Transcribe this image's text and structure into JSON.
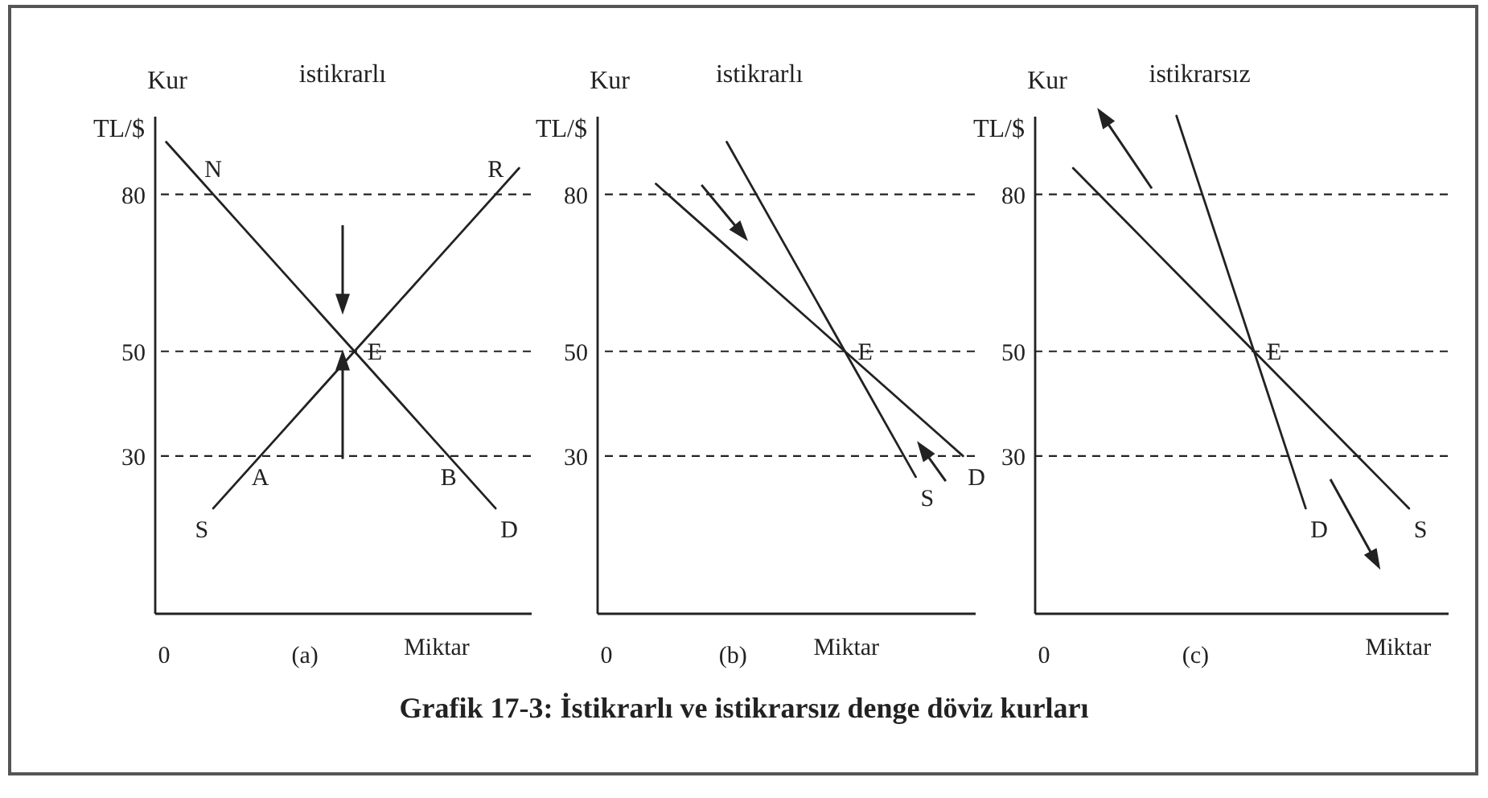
{
  "chart_data": [
    {
      "type": "line",
      "title": "istikrarlı",
      "xlabel": "Miktar",
      "ylabel": "Kur\nTL/$",
      "categories": [
        null,
        null,
        null,
        null,
        null,
        null,
        null,
        null,
        null,
        null,
        null,
        null,
        null,
        null,
        null,
        null
      ],
      "series": [
        {
          "name": "S",
          "color": "#222222",
          "values": [
            null,
            null,
            20,
            25,
            30,
            35,
            40,
            45,
            50,
            55,
            60,
            65,
            70,
            75,
            80,
            85
          ],
          "value_labels": [
            null,
            null,
            null,
            null,
            "A",
            null,
            null,
            null,
            null,
            null,
            null,
            null,
            null,
            null,
            "R",
            null
          ]
        },
        {
          "name": "D",
          "color": "#222222",
          "values": [
            90,
            85,
            80,
            75,
            70,
            65,
            60,
            55,
            50,
            45,
            40,
            35,
            30,
            25,
            20,
            null
          ],
          "value_labels": [
            null,
            null,
            "N",
            null,
            null,
            null,
            null,
            null,
            "E",
            null,
            null,
            null,
            "B",
            null,
            null,
            null
          ]
        }
      ],
      "ylim": [
        0,
        95
      ],
      "yticks": [
        30,
        50,
        80
      ],
      "ref_lines": [
        {
          "axis": "y",
          "value": 80,
          "color": "#222222",
          "line_style": "dashed"
        },
        {
          "axis": "y",
          "value": 50,
          "color": "#222222",
          "line_style": "dashed"
        },
        {
          "axis": "y",
          "value": 30,
          "color": "#222222",
          "line_style": "dashed"
        }
      ],
      "annotations": [
        "0",
        "(a)",
        "Grafik 17-3: İstikrarlı ve istikrarsız denge döviz kurları"
      ]
    },
    {
      "type": "line",
      "title": "istikrarlı",
      "xlabel": "Miktar",
      "ylabel": "Kur\nTL/$",
      "categories": [
        null,
        null,
        null,
        null,
        null,
        null,
        null,
        null,
        null,
        null,
        null,
        null,
        null,
        null,
        null,
        null
      ],
      "series": [
        {
          "name": "S",
          "color": "#222222",
          "values": [
            null,
            null,
            null,
            null,
            null,
            90,
            82,
            74,
            66,
            58,
            50,
            42,
            34,
            26,
            null,
            null
          ]
        },
        {
          "name": "D",
          "color": "#222222",
          "values": [
            null,
            null,
            82,
            78,
            74,
            70,
            66,
            62,
            58,
            54,
            50,
            46,
            42,
            38,
            34,
            30
          ],
          "value_labels": [
            null,
            null,
            null,
            null,
            null,
            null,
            null,
            null,
            null,
            null,
            "E",
            null,
            null,
            null,
            null,
            null
          ]
        }
      ],
      "ylim": [
        0,
        95
      ],
      "yticks": [
        30,
        50,
        80
      ],
      "ref_lines": [
        {
          "axis": "y",
          "value": 80,
          "color": "#222222",
          "line_style": "dashed"
        },
        {
          "axis": "y",
          "value": 50,
          "color": "#222222",
          "line_style": "dashed"
        },
        {
          "axis": "y",
          "value": 30,
          "color": "#222222",
          "line_style": "dashed"
        }
      ],
      "annotations": [
        "0",
        "(b)"
      ]
    },
    {
      "type": "line",
      "title": "istikrarsız",
      "xlabel": "Miktar",
      "ylabel": "Kur\nTL/$",
      "categories": [
        null,
        null,
        null,
        null,
        null,
        null,
        null,
        null,
        null,
        null,
        null,
        null,
        null,
        null,
        null,
        null
      ],
      "series": [
        {
          "name": "S",
          "color": "#222222",
          "values": [
            null,
            85,
            80,
            75,
            70,
            65,
            60,
            55,
            50,
            45,
            40,
            35,
            30,
            25,
            20,
            null
          ],
          "value_labels": [
            null,
            null,
            null,
            null,
            null,
            null,
            null,
            null,
            "E",
            null,
            null,
            null,
            null,
            null,
            null,
            null
          ]
        },
        {
          "name": "D",
          "color": "#222222",
          "values": [
            null,
            null,
            null,
            null,
            null,
            95,
            80,
            65,
            50,
            35,
            20,
            null,
            null,
            null,
            null,
            null
          ]
        }
      ],
      "ylim": [
        0,
        95
      ],
      "yticks": [
        30,
        50,
        80
      ],
      "ref_lines": [
        {
          "axis": "y",
          "value": 80,
          "color": "#222222",
          "line_style": "dashed"
        },
        {
          "axis": "y",
          "value": 50,
          "color": "#222222",
          "line_style": "dashed"
        },
        {
          "axis": "y",
          "value": 30,
          "color": "#222222",
          "line_style": "dashed"
        }
      ],
      "annotations": [
        "0",
        "(c)"
      ]
    }
  ]
}
